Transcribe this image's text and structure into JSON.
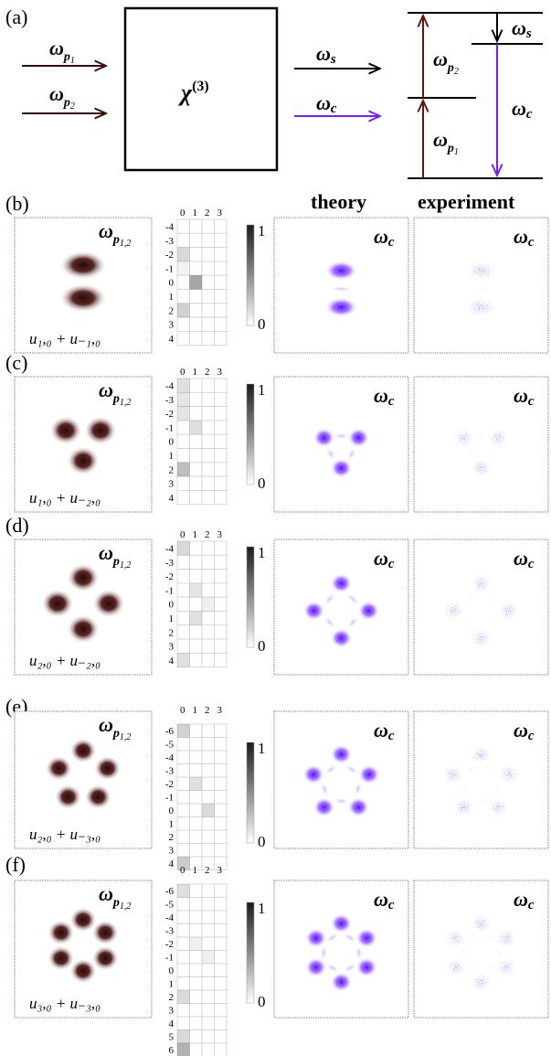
{
  "top": {
    "label": "(a)",
    "pump1": "ω",
    "pump1_sub": "p",
    "pump1_subsub": "1",
    "pump2": "ω",
    "pump2_sub": "p",
    "pump2_subsub": "2",
    "chi": "χ",
    "chi_sup": "(3)",
    "signal": "ω",
    "signal_sub": "s",
    "conj": "ω",
    "conj_sub": "c",
    "level_p2": "ω",
    "level_p2_sub": "p",
    "level_p2_subsub": "2",
    "level_p1": "ω",
    "level_p1_sub": "p",
    "level_p1_subsub": "1",
    "level_s": "ω",
    "level_s_sub": "s",
    "level_c": "ω",
    "level_c_sub": "c"
  },
  "column_headers": {
    "theory": "theory",
    "experiment": "experiment"
  },
  "colorbar": {
    "max": "1",
    "min": "0"
  },
  "colors": {
    "pump": "#3d0a0a",
    "signal": "#000000",
    "conj": "#7a1cff",
    "level_arrow": "#6b0f0f"
  },
  "rows": [
    {
      "label": "(b)",
      "pump_label": "ω",
      "pump_sub": "p",
      "pump_subsub": "1,2",
      "mode_formula": "u₁,₀ + u₋₁,₀",
      "out_label": "ω",
      "out_sub": "c",
      "grid_cols": [
        "0",
        "1",
        "2",
        "3"
      ],
      "grid_rows": [
        "-4",
        "-3",
        "-2",
        "-1",
        "0",
        "1",
        "2",
        "3",
        "4"
      ],
      "pump_lobes": 2,
      "theory_lobes": 2,
      "exp_lobes": 2
    },
    {
      "label": "(c)",
      "pump_label": "ω",
      "pump_sub": "p",
      "pump_subsub": "1,2",
      "mode_formula": "u₁,₀ + u₋₂,₀",
      "out_label": "ω",
      "out_sub": "c",
      "grid_cols": [
        "0",
        "1",
        "2",
        "3"
      ],
      "grid_rows": [
        "-4",
        "-3",
        "-2",
        "-1",
        "0",
        "1",
        "2",
        "3",
        "4"
      ],
      "pump_lobes": 3,
      "theory_lobes": 3,
      "exp_lobes": 3
    },
    {
      "label": "(d)",
      "pump_label": "ω",
      "pump_sub": "p",
      "pump_subsub": "1,2",
      "mode_formula": "u₂,₀ + u₋₂,₀",
      "out_label": "ω",
      "out_sub": "c",
      "grid_cols": [
        "0",
        "1",
        "2",
        "3"
      ],
      "grid_rows": [
        "-4",
        "-3",
        "-2",
        "-1",
        "0",
        "1",
        "2",
        "3",
        "4"
      ],
      "pump_lobes": 4,
      "theory_lobes": 4,
      "exp_lobes": 4
    },
    {
      "label": "(e)",
      "pump_label": "ω",
      "pump_sub": "p",
      "pump_subsub": "1,2",
      "mode_formula": "u₂,₀ + u₋₃,₀",
      "out_label": "ω",
      "out_sub": "c",
      "grid_cols": [
        "0",
        "1",
        "2",
        "3"
      ],
      "grid_rows": [
        "-6",
        "-5",
        "-4",
        "-3",
        "-2",
        "-1",
        "0",
        "1",
        "2",
        "3",
        "4"
      ],
      "pump_lobes": 5,
      "theory_lobes": 5,
      "exp_lobes": 5
    },
    {
      "label": "(f)",
      "pump_label": "ω",
      "pump_sub": "p",
      "pump_subsub": "1,2",
      "mode_formula": "u₃,₀ + u₋₃,₀",
      "out_label": "ω",
      "out_sub": "c",
      "grid_cols": [
        "0",
        "1",
        "2",
        "3"
      ],
      "grid_rows": [
        "-6",
        "-5",
        "-4",
        "-3",
        "-2",
        "-1",
        "0",
        "1",
        "2",
        "3",
        "4",
        "5",
        "6"
      ],
      "pump_lobes": 6,
      "theory_lobes": 6,
      "exp_lobes": 6
    }
  ]
}
